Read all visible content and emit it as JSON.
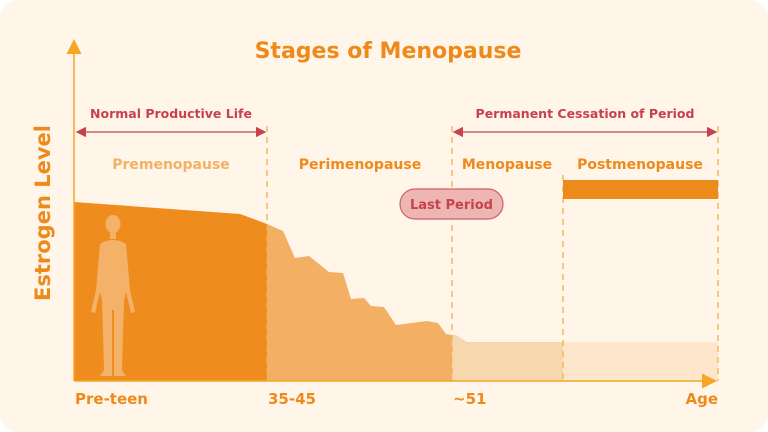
{
  "title": "Stages of Menopause",
  "y_axis_label": "Estrogen Level",
  "ranges": [
    {
      "label": "Normal Productive Life"
    },
    {
      "label": "Permanent Cessation of Period"
    }
  ],
  "stages": [
    {
      "label": "Premenopause"
    },
    {
      "label": "Perimenopause"
    },
    {
      "label": "Menopause"
    },
    {
      "label": "Postmenopause"
    }
  ],
  "marker": {
    "label": "Last Period"
  },
  "x_ticks": [
    "Pre-teen",
    "35-45",
    "~51",
    "Age"
  ],
  "icons": {
    "figure": "human-silhouette-icon"
  },
  "colors": {
    "accent": "#ee8a1c",
    "light": "#f3b064",
    "red": "#c8414f",
    "background": "#fff5e8"
  }
}
